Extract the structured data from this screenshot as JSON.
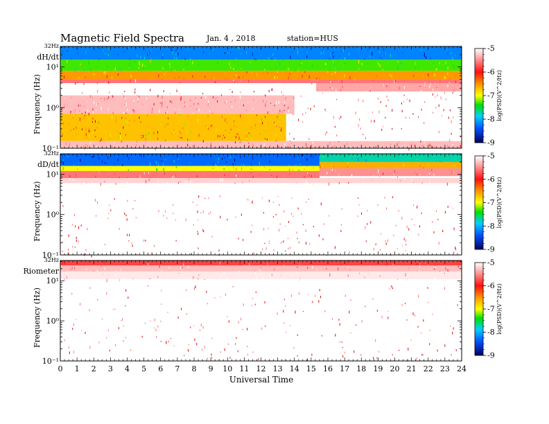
{
  "header": {
    "title": "Magnetic  Field  Spectra",
    "date": "Jan. 4  , 2018",
    "station": "station=HUS"
  },
  "xaxis": {
    "label": "Universal Time",
    "ticks": [
      "0",
      "1",
      "2",
      "3",
      "4",
      "5",
      "6",
      "7",
      "8",
      "9",
      "10",
      "11",
      "12",
      "13",
      "14",
      "15",
      "16",
      "17",
      "18",
      "19",
      "20",
      "21",
      "22",
      "23",
      "24"
    ]
  },
  "colorbar": {
    "label": "log(PSD)(V^2/Hz)",
    "ticks": [
      "-5",
      "-6",
      "-7",
      "-8",
      "-9"
    ]
  },
  "colors": {
    "high": "#c00000",
    "mid_red": "#ff2020",
    "orange": "#ff9900",
    "yellow": "#ffff00",
    "green": "#00e000",
    "cyan": "#00d0ff",
    "blue": "#0050ff",
    "navy": "#000060"
  },
  "chart_data": [
    {
      "type": "heatmap",
      "panel": "dH/dt",
      "ylabel": "Frequency (Hz)",
      "top_label": "32Hz",
      "ytick_labels": [
        "10¹",
        "10⁰",
        "10⁻¹"
      ],
      "x_unit": "hours UT",
      "xlim": [
        0,
        24
      ],
      "ylim_hz": [
        0.1,
        32
      ],
      "yscale": "log",
      "zlabel": "log(PSD)(V^2/Hz)",
      "zlim": [
        -9,
        -5
      ],
      "bands": [
        {
          "x": [
            0,
            24
          ],
          "f": [
            15,
            32
          ],
          "z": -8.3
        },
        {
          "x": [
            0,
            24
          ],
          "f": [
            8,
            15
          ],
          "z": -7.3
        },
        {
          "x": [
            0,
            24
          ],
          "f": [
            5,
            8
          ],
          "z": -6.5
        },
        {
          "x": [
            0,
            24
          ],
          "f": [
            4,
            5
          ],
          "z": -5.6
        },
        {
          "x": [
            15.3,
            24
          ],
          "f": [
            2.5,
            4
          ],
          "z": -5.4
        },
        {
          "x": [
            0,
            14
          ],
          "f": [
            0.7,
            2
          ],
          "z": -5.3
        },
        {
          "x": [
            0,
            13.5
          ],
          "f": [
            0.15,
            0.7
          ],
          "z": -6.7
        },
        {
          "x": [
            0,
            24
          ],
          "f": [
            0.1,
            0.15
          ],
          "z": -5.3
        }
      ]
    },
    {
      "type": "heatmap",
      "panel": "dD/dt",
      "ylabel": "Frequency (Hz)",
      "top_label": "32Hz",
      "ytick_labels": [
        "10¹",
        "10⁰",
        "10⁻¹"
      ],
      "x_unit": "hours UT",
      "xlim": [
        0,
        24
      ],
      "ylim_hz": [
        0.1,
        32
      ],
      "yscale": "log",
      "zlabel": "log(PSD)(V^2/Hz)",
      "zlim": [
        -9,
        -5
      ],
      "bands": [
        {
          "x": [
            0,
            15.5
          ],
          "f": [
            16,
            32
          ],
          "z": -8.4
        },
        {
          "x": [
            15.5,
            24
          ],
          "f": [
            20,
            32
          ],
          "z": -7.8
        },
        {
          "x": [
            0,
            15.5
          ],
          "f": [
            12,
            16
          ],
          "z": -7.0
        },
        {
          "x": [
            15.5,
            24
          ],
          "f": [
            14,
            20
          ],
          "z": -6.6
        },
        {
          "x": [
            0,
            15.5
          ],
          "f": [
            8,
            12
          ],
          "z": -5.6
        },
        {
          "x": [
            15.5,
            24
          ],
          "f": [
            9,
            14
          ],
          "z": -5.5
        },
        {
          "x": [
            0,
            24
          ],
          "f": [
            6,
            8
          ],
          "z": -5.2
        }
      ]
    },
    {
      "type": "heatmap",
      "panel": "Riometer",
      "ylabel": "Frequency (Hz)",
      "top_label": "32Hz",
      "ytick_labels": [
        "10¹",
        "10⁰",
        "10⁻¹"
      ],
      "x_unit": "hours UT",
      "xlim": [
        0,
        24
      ],
      "ylim_hz": [
        0.1,
        32
      ],
      "yscale": "log",
      "zlabel": "log(PSD)(V^2/Hz)",
      "zlim": [
        -9,
        -5
      ],
      "bands": [
        {
          "x": [
            0,
            24
          ],
          "f": [
            24,
            32
          ],
          "z": -5.8
        },
        {
          "x": [
            0,
            24
          ],
          "f": [
            17,
            24
          ],
          "z": -5.3
        },
        {
          "x": [
            0,
            24
          ],
          "f": [
            11,
            17
          ],
          "z": -5.1
        }
      ]
    }
  ]
}
